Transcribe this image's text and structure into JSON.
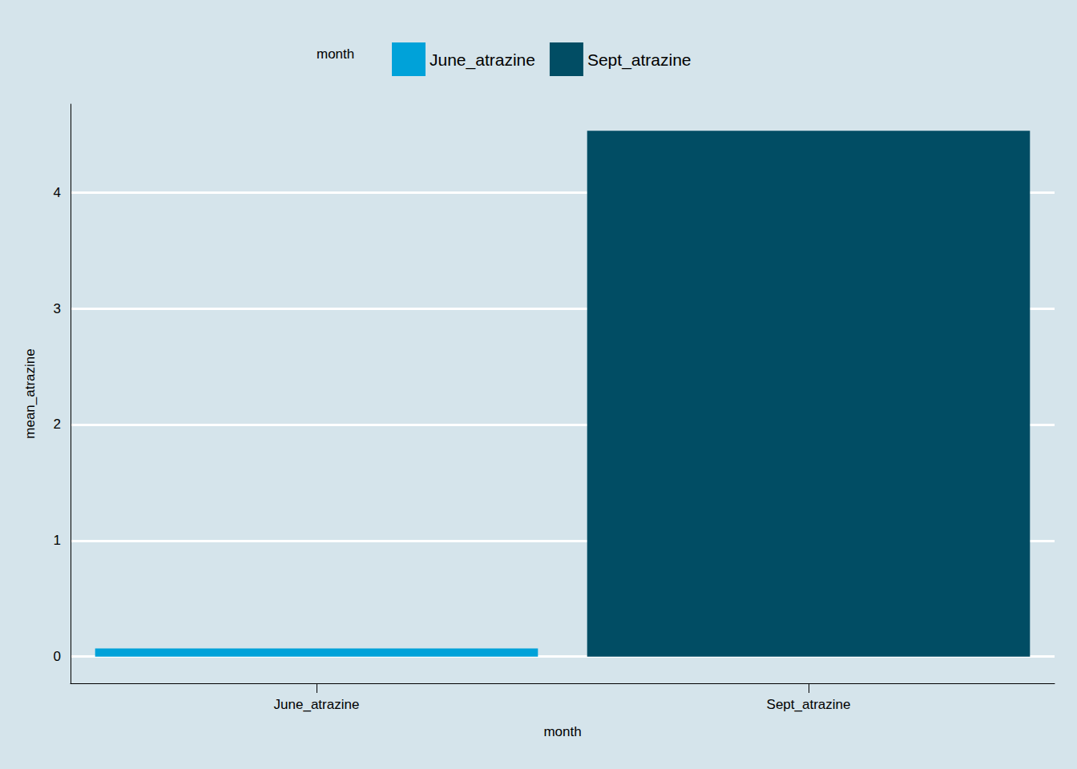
{
  "chart_data": {
    "type": "bar",
    "x_label": "month",
    "y_label": "mean_atrazine",
    "legend_title": "month",
    "categories": [
      "June_atrazine",
      "Sept_atrazine"
    ],
    "values": [
      0.07,
      4.53
    ],
    "colors": [
      "#00a2d9",
      "#014d64"
    ],
    "ylim": [
      -0.23,
      4.76
    ],
    "yticks": [
      0,
      1,
      2,
      3,
      4
    ],
    "grid": true,
    "legend": "top"
  }
}
